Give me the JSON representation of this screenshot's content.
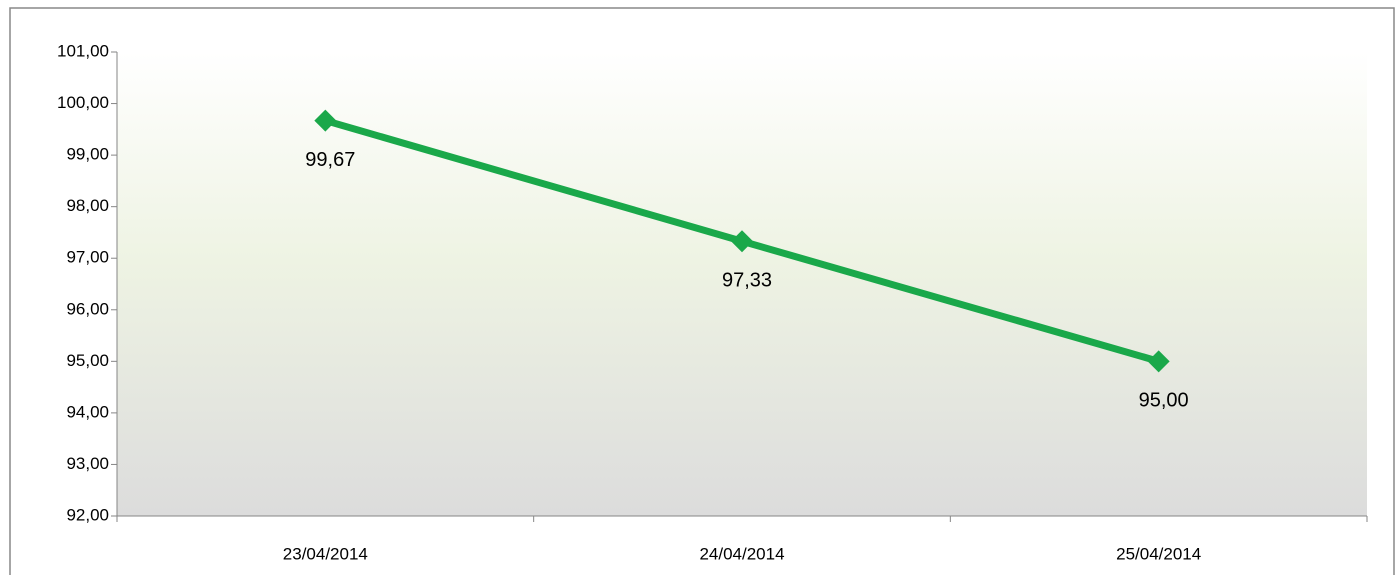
{
  "chart_data": {
    "type": "line",
    "categories": [
      "23/04/2014",
      "24/04/2014",
      "25/04/2014"
    ],
    "series": [
      {
        "color": "#1aa84a",
        "values": [
          99.67,
          97.33,
          95.0
        ],
        "value_labels": [
          "99,67",
          "97,33",
          "95,00"
        ]
      }
    ],
    "ylim": [
      92,
      101
    ],
    "yticks": [
      {
        "value": 92,
        "label": "92,00"
      },
      {
        "value": 93,
        "label": "93,00"
      },
      {
        "value": 94,
        "label": "94,00"
      },
      {
        "value": 95,
        "label": "95,00"
      },
      {
        "value": 96,
        "label": "96,00"
      },
      {
        "value": 97,
        "label": "97,00"
      },
      {
        "value": 98,
        "label": "98,00"
      },
      {
        "value": 99,
        "label": "99,00"
      },
      {
        "value": 100,
        "label": "100,00"
      },
      {
        "value": 101,
        "label": "101,00"
      }
    ],
    "grid": false
  }
}
